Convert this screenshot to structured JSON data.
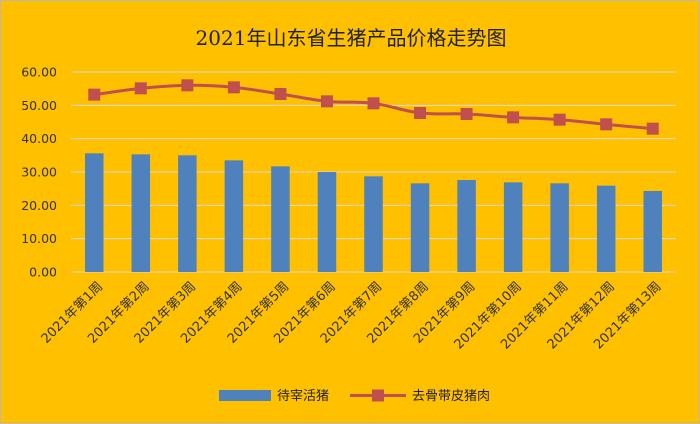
{
  "chart_data": {
    "type": "bar",
    "title": "2021年山东省生猪产品价格走势图",
    "categories": [
      "2021年第1周",
      "2021年第2周",
      "2021年第3周",
      "2021年第4周",
      "2021年第5周",
      "2021年第6周",
      "2021年第7周",
      "2021年第8周",
      "2021年第9周",
      "2021年第10周",
      "2021年第11周",
      "2021年第12周",
      "2021年第13周"
    ],
    "ylim": [
      0,
      60
    ],
    "yticks": [
      "0.00",
      "10.00",
      "20.00",
      "30.00",
      "40.00",
      "50.00",
      "60.00"
    ],
    "grid": true,
    "legend_position": "bottom",
    "series": [
      {
        "name": "待宰活猪",
        "type": "bar",
        "color": "#4F81BD",
        "values": [
          35.6,
          35.3,
          35.0,
          33.5,
          31.7,
          30.0,
          28.7,
          26.6,
          27.6,
          26.9,
          26.6,
          25.9,
          24.3
        ]
      },
      {
        "name": "去骨带皮猪肉",
        "type": "line",
        "color": "#C0504D",
        "marker": "square",
        "values": [
          53.2,
          55.1,
          56.0,
          55.4,
          53.4,
          51.2,
          50.6,
          47.7,
          47.4,
          46.4,
          45.7,
          44.3,
          43.0
        ]
      }
    ]
  }
}
